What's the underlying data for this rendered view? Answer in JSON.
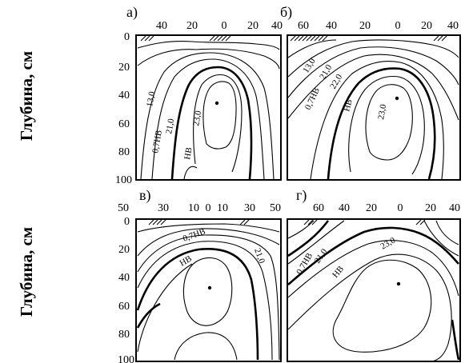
{
  "figure": {
    "y_axis_label": "Глубина, см",
    "depth_ticks": [
      "0",
      "20",
      "40",
      "60",
      "80",
      "100"
    ],
    "panels": [
      {
        "letter": "а)",
        "top_ticks": [
          "40",
          "20",
          "0",
          "20",
          "40"
        ],
        "contour_labels": [
          "13,0",
          "0,7НВ",
          "21,0",
          "НВ",
          "23,0"
        ]
      },
      {
        "letter": "б)",
        "top_ticks": [
          "60",
          "40",
          "20",
          "0",
          "20",
          "40"
        ],
        "contour_labels": [
          "13,0",
          "0,7НВ",
          "21,0",
          "22,0",
          "НВ",
          "23,0"
        ]
      },
      {
        "letter": "в)",
        "top_ticks": [
          "50",
          "30",
          "10",
          "0",
          "10",
          "30",
          "50"
        ],
        "contour_labels": [
          "0,7НВ",
          "21,0",
          "НВ"
        ]
      },
      {
        "letter": "г)",
        "top_ticks": [
          "60",
          "40",
          "20",
          "0",
          "20",
          "40"
        ],
        "contour_labels": [
          "0,7НВ",
          "21,0",
          "НВ",
          "23,0"
        ]
      }
    ]
  }
}
